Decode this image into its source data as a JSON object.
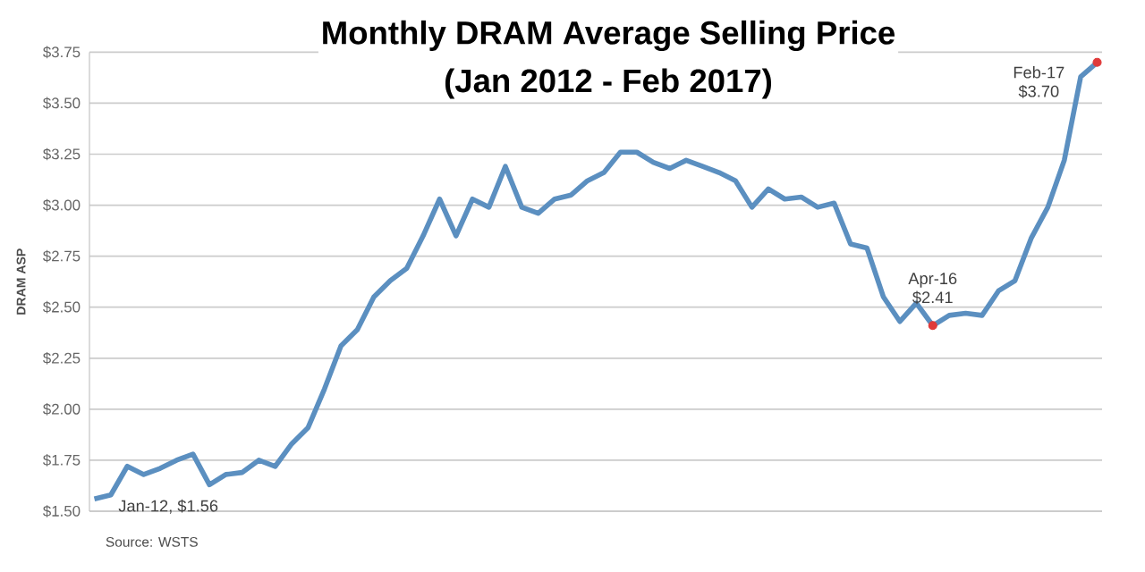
{
  "chart_data": {
    "type": "line",
    "title": "Monthly DRAM Average Selling Price",
    "subtitle": "(Jan 2012 - Feb 2017)",
    "ylabel": "DRAM ASP",
    "categories": [
      null,
      null,
      null,
      null,
      null,
      null,
      null,
      null,
      null,
      null,
      null,
      null,
      null,
      null,
      null,
      null,
      null,
      null,
      null,
      null,
      null,
      null,
      null,
      null,
      null,
      null,
      null,
      null,
      null,
      null,
      null,
      null,
      null,
      null,
      null,
      null,
      null,
      null,
      null,
      null,
      null,
      null,
      null,
      null,
      null,
      null,
      null,
      null,
      null,
      null,
      null,
      null,
      null,
      null,
      null,
      null,
      null,
      null,
      null,
      null,
      null,
      null
    ],
    "series": [
      {
        "color": "#5b8fc0",
        "values": [
          1.56,
          1.58,
          1.72,
          1.68,
          1.71,
          1.75,
          1.78,
          1.63,
          1.68,
          1.69,
          1.75,
          1.72,
          1.83,
          1.91,
          2.1,
          2.31,
          2.39,
          2.55,
          2.63,
          2.69,
          2.85,
          3.03,
          2.85,
          3.03,
          2.99,
          3.19,
          2.99,
          2.96,
          3.03,
          3.05,
          3.12,
          3.16,
          3.26,
          3.26,
          3.21,
          3.18,
          3.22,
          3.19,
          3.16,
          3.12,
          2.99,
          3.08,
          3.03,
          3.04,
          2.99,
          3.01,
          2.81,
          2.79,
          2.55,
          2.43,
          2.52,
          2.41,
          2.46,
          2.47,
          2.46,
          2.58,
          2.63,
          2.84,
          2.99,
          3.22,
          3.63,
          3.7
        ]
      },
      {
        "type": "scatter",
        "color": "#e03a3a",
        "values": [
          null,
          null,
          null,
          null,
          null,
          null,
          null,
          null,
          null,
          null,
          null,
          null,
          null,
          null,
          null,
          null,
          null,
          null,
          null,
          null,
          null,
          null,
          null,
          null,
          null,
          null,
          null,
          null,
          null,
          null,
          null,
          null,
          null,
          null,
          null,
          null,
          null,
          null,
          null,
          null,
          null,
          null,
          null,
          null,
          null,
          null,
          null,
          null,
          null,
          null,
          null,
          2.41,
          null,
          null,
          null,
          null,
          null,
          null,
          null,
          null,
          null,
          3.7
        ]
      }
    ],
    "ylim": [
      1.5,
      3.75
    ],
    "yticks": [
      {
        "value": 1.5,
        "label": "$1.50"
      },
      {
        "value": 1.75,
        "label": "$1.75"
      },
      {
        "value": 2.0,
        "label": "$2.00"
      },
      {
        "value": 2.25,
        "label": "$2.25"
      },
      {
        "value": 2.5,
        "label": "$2.50"
      },
      {
        "value": 2.75,
        "label": "$2.75"
      },
      {
        "value": 3.0,
        "label": "$3.00"
      },
      {
        "value": 3.25,
        "label": "$3.25"
      },
      {
        "value": 3.5,
        "label": "$3.50"
      },
      {
        "value": 3.75,
        "label": "$3.75"
      }
    ],
    "grid": "y",
    "tick_labels": "y",
    "annotations": [
      "Jan-12, $1.56",
      "Apr-16 $2.41",
      "Feb-17 $3.70",
      "Source:  WSTS"
    ]
  }
}
